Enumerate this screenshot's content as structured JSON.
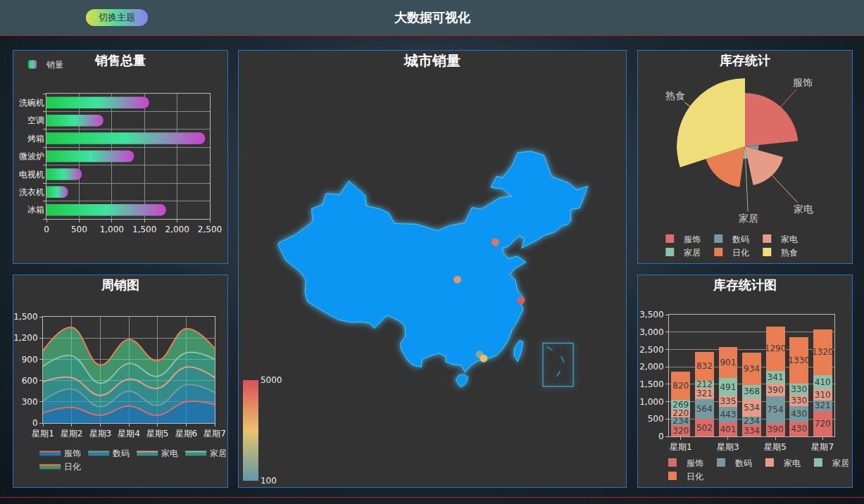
{
  "header": {
    "title": "大数据可视化",
    "button": "切换主题"
  },
  "chart_data": [
    {
      "type": "bar",
      "title": "销售总量",
      "orientation": "horizontal",
      "categories": [
        "冰箱",
        "洗衣机",
        "电视机",
        "微波炉",
        "烤箱",
        "空调",
        "洗碗机"
      ],
      "series": [
        {
          "name": "销量",
          "color": "#1ccc4a",
          "values": [
            1830,
            330,
            540,
            1340,
            2430,
            870,
            1570
          ]
        }
      ],
      "xlim": [
        0,
        2500
      ],
      "xticks": [
        0,
        500,
        {
          "value": 1000,
          "label": "1,000"
        },
        {
          "value": 1500,
          "label": "1,500"
        },
        {
          "value": 2000,
          "label": "2,000"
        },
        {
          "value": 2500,
          "label": "2,500"
        }
      ],
      "grid": true,
      "legend": "top left"
    },
    {
      "type": "line",
      "title": "周销图",
      "stacked": true,
      "line_style": "smooth",
      "categories": [
        "星期1",
        "星期2",
        "星期3",
        "星期4",
        "星期5",
        "星期6",
        "星期7"
      ],
      "series": [
        {
          "name": "服饰",
          "color": "#dd6b66",
          "values": [
            140,
            220,
            110,
            240,
            110,
            300,
            260
          ]
        },
        {
          "name": "数码",
          "color": "#759aa0",
          "values": [
            170,
            260,
            120,
            210,
            140,
            240,
            170
          ]
        },
        {
          "name": "家电",
          "color": "#e69d87",
          "values": [
            270,
            160,
            160,
            170,
            240,
            250,
            210
          ]
        },
        {
          "name": "家居",
          "color": "#8dc1a9",
          "values": [
            220,
            310,
            170,
            220,
            170,
            200,
            260
          ]
        },
        {
          "name": "日化",
          "color": "#ea7e53",
          "values": [
            220,
            400,
            260,
            340,
            220,
            340,
            150
          ]
        }
      ],
      "ylim": [
        0,
        1500
      ],
      "yticks": [
        0,
        300,
        600,
        900,
        {
          "value": 1200,
          "label": "1,200"
        },
        {
          "value": 1500,
          "label": "1,500"
        }
      ],
      "grid": true,
      "legend": "bottom"
    },
    {
      "type": "map",
      "title": "城市销量",
      "points": [
        {
          "lon": 116.4,
          "lat": 39.9,
          "value": 4200
        },
        {
          "lon": 108.9,
          "lat": 34.3,
          "value": 3500
        },
        {
          "lon": 121.5,
          "lat": 31.2,
          "value": 4700
        },
        {
          "lon": 113.3,
          "lat": 23.1,
          "value": 800
        },
        {
          "lon": 114.1,
          "lat": 22.5,
          "value": 2600
        }
      ],
      "colorbar": {
        "range": [
          100,
          5000
        ],
        "ticks": [
          100,
          5000
        ]
      },
      "tick_labels": false
    },
    {
      "type": "rose",
      "title": "库存统计",
      "categories": [
        "服饰",
        "数码",
        "家电",
        "家居",
        "日化",
        "熟食"
      ],
      "values": [
        78,
        20,
        58,
        18,
        60,
        100
      ],
      "colors": [
        "#dd6b66",
        "#759aa0",
        "#e69d87",
        "#8dc1a9",
        "#ea7e53",
        "#eedd78"
      ],
      "labels": [
        "服饰",
        null,
        "家电",
        "家居",
        null,
        "熟食"
      ],
      "legend": "bottom"
    },
    {
      "type": "bar",
      "title": "库存统计图",
      "stacked": true,
      "data_labels": true,
      "categories": [
        "星期1",
        null,
        "星期3",
        null,
        "星期5",
        null,
        "星期7"
      ],
      "series": [
        {
          "name": "服饰",
          "color": "#dd6b66",
          "values": [
            320,
            502,
            401,
            334,
            390,
            430,
            720
          ]
        },
        {
          "name": "数码",
          "color": "#759aa0",
          "values": [
            234,
            564,
            443,
            234,
            754,
            430,
            321
          ]
        },
        {
          "name": "家电",
          "color": "#e69d87",
          "values": [
            220,
            321,
            335,
            534,
            390,
            330,
            310
          ]
        },
        {
          "name": "家居",
          "color": "#8dc1a9",
          "values": [
            269,
            212,
            491,
            368,
            341,
            330,
            410
          ]
        },
        {
          "name": "日化",
          "color": "#ea7e53",
          "values": [
            820,
            832,
            901,
            934,
            1290,
            1330,
            1320
          ]
        }
      ],
      "ylim": [
        0,
        3500
      ],
      "yticks": [
        0,
        500,
        {
          "value": 1000,
          "label": "1,000"
        },
        {
          "value": 1500,
          "label": "1,500"
        },
        {
          "value": 2000,
          "label": "2,000"
        },
        {
          "value": 2500,
          "label": "2,500"
        },
        {
          "value": 3000,
          "label": "3,000"
        },
        {
          "value": 3500,
          "label": "3,500"
        }
      ],
      "grid": true,
      "legend": "bottom"
    }
  ]
}
